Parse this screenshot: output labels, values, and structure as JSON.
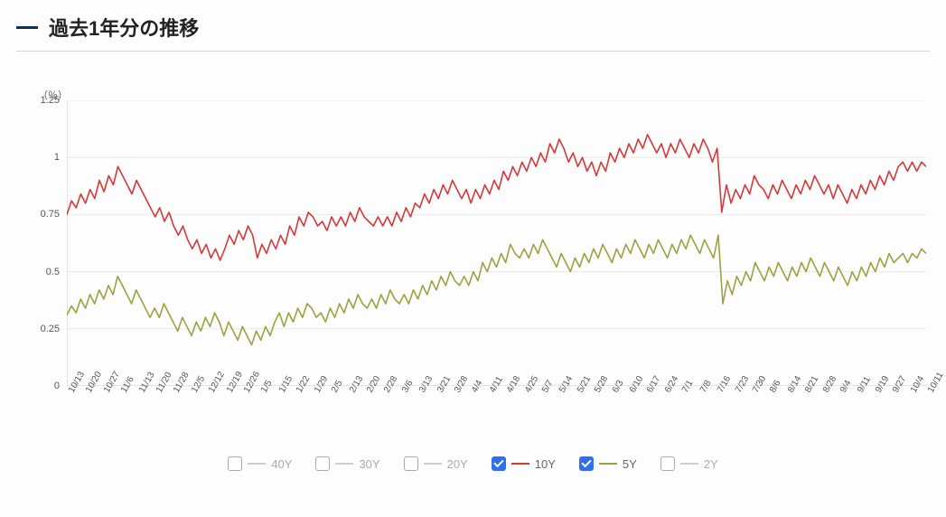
{
  "title": "過去1年分の推移",
  "chart": {
    "type": "line",
    "y_unit": "（％）",
    "ylim": [
      0,
      1.25
    ],
    "ytick_step": 0.25,
    "ytick_labels": [
      "0",
      "0.25",
      "0.5",
      "0.75",
      "1",
      "1.25"
    ],
    "background_color": "#fdfdfd",
    "grid_color": "#e8e8e8",
    "axis_color": "#cccccc",
    "text_color": "#555555",
    "xtick_rotation": -60,
    "label_fontsize": 11,
    "x_labels": [
      "10/13",
      "10/20",
      "10/27",
      "11/6",
      "11/13",
      "11/20",
      "11/28",
      "12/5",
      "12/12",
      "12/19",
      "12/26",
      "1/5",
      "1/15",
      "1/22",
      "1/29",
      "2/5",
      "2/13",
      "2/20",
      "2/28",
      "3/6",
      "3/13",
      "3/21",
      "3/28",
      "4/4",
      "4/11",
      "4/18",
      "4/25",
      "5/7",
      "5/14",
      "5/21",
      "5/28",
      "6/3",
      "6/10",
      "6/17",
      "6/24",
      "7/1",
      "7/8",
      "7/16",
      "7/23",
      "7/30",
      "8/6",
      "8/14",
      "8/21",
      "8/28",
      "9/4",
      "9/11",
      "9/19",
      "9/27",
      "10/4",
      "10/11"
    ],
    "series": {
      "s40Y": {
        "label": "40Y",
        "color": "#cccccc",
        "visible": false,
        "line_width": 1.5,
        "values": []
      },
      "s30Y": {
        "label": "30Y",
        "color": "#cccccc",
        "visible": false,
        "line_width": 1.5,
        "values": []
      },
      "s20Y": {
        "label": "20Y",
        "color": "#cccccc",
        "visible": false,
        "line_width": 1.5,
        "values": []
      },
      "s10Y": {
        "label": "10Y",
        "color": "#d73838",
        "visible": true,
        "line_width": 1.6,
        "values": [
          0.75,
          0.81,
          0.78,
          0.84,
          0.8,
          0.86,
          0.82,
          0.9,
          0.85,
          0.92,
          0.88,
          0.96,
          0.92,
          0.88,
          0.84,
          0.9,
          0.86,
          0.82,
          0.78,
          0.74,
          0.78,
          0.72,
          0.76,
          0.7,
          0.66,
          0.7,
          0.64,
          0.6,
          0.64,
          0.58,
          0.62,
          0.56,
          0.6,
          0.55,
          0.6,
          0.66,
          0.62,
          0.68,
          0.64,
          0.7,
          0.66,
          0.56,
          0.62,
          0.58,
          0.64,
          0.6,
          0.66,
          0.62,
          0.7,
          0.66,
          0.74,
          0.7,
          0.76,
          0.74,
          0.7,
          0.72,
          0.68,
          0.74,
          0.7,
          0.74,
          0.7,
          0.76,
          0.72,
          0.78,
          0.74,
          0.72,
          0.7,
          0.74,
          0.7,
          0.74,
          0.7,
          0.76,
          0.72,
          0.78,
          0.74,
          0.8,
          0.78,
          0.84,
          0.8,
          0.86,
          0.82,
          0.88,
          0.84,
          0.9,
          0.86,
          0.82,
          0.86,
          0.8,
          0.86,
          0.82,
          0.88,
          0.84,
          0.9,
          0.86,
          0.94,
          0.9,
          0.96,
          0.92,
          0.98,
          0.94,
          1.0,
          0.96,
          1.02,
          0.98,
          1.06,
          1.02,
          1.08,
          1.04,
          0.98,
          1.02,
          0.96,
          1.0,
          0.94,
          0.98,
          0.92,
          0.98,
          0.94,
          1.02,
          0.98,
          1.04,
          1.0,
          1.06,
          1.02,
          1.08,
          1.04,
          1.1,
          1.06,
          1.02,
          1.06,
          1.0,
          1.06,
          1.02,
          1.08,
          1.04,
          1.0,
          1.06,
          1.02,
          1.08,
          1.04,
          0.98,
          1.04,
          0.76,
          0.88,
          0.8,
          0.86,
          0.82,
          0.88,
          0.84,
          0.92,
          0.88,
          0.86,
          0.82,
          0.88,
          0.84,
          0.9,
          0.86,
          0.82,
          0.88,
          0.84,
          0.9,
          0.86,
          0.92,
          0.88,
          0.84,
          0.88,
          0.82,
          0.88,
          0.84,
          0.8,
          0.86,
          0.82,
          0.88,
          0.84,
          0.9,
          0.86,
          0.92,
          0.88,
          0.94,
          0.9,
          0.96,
          0.98,
          0.94,
          0.98,
          0.94,
          0.98,
          0.96
        ]
      },
      "s5Y": {
        "label": "5Y",
        "color": "#9aa33f",
        "visible": true,
        "line_width": 1.6,
        "values": [
          0.31,
          0.35,
          0.32,
          0.38,
          0.34,
          0.4,
          0.36,
          0.42,
          0.38,
          0.44,
          0.4,
          0.48,
          0.44,
          0.4,
          0.36,
          0.42,
          0.38,
          0.34,
          0.3,
          0.34,
          0.3,
          0.36,
          0.32,
          0.28,
          0.24,
          0.3,
          0.26,
          0.22,
          0.28,
          0.24,
          0.3,
          0.26,
          0.32,
          0.28,
          0.22,
          0.28,
          0.24,
          0.2,
          0.26,
          0.22,
          0.18,
          0.24,
          0.2,
          0.26,
          0.22,
          0.28,
          0.32,
          0.26,
          0.32,
          0.28,
          0.34,
          0.3,
          0.36,
          0.34,
          0.3,
          0.32,
          0.28,
          0.34,
          0.3,
          0.36,
          0.32,
          0.38,
          0.34,
          0.4,
          0.36,
          0.34,
          0.38,
          0.34,
          0.4,
          0.36,
          0.42,
          0.38,
          0.36,
          0.4,
          0.36,
          0.42,
          0.38,
          0.44,
          0.4,
          0.46,
          0.42,
          0.48,
          0.44,
          0.5,
          0.46,
          0.44,
          0.48,
          0.44,
          0.5,
          0.46,
          0.54,
          0.5,
          0.56,
          0.52,
          0.58,
          0.54,
          0.62,
          0.58,
          0.56,
          0.6,
          0.56,
          0.62,
          0.58,
          0.64,
          0.6,
          0.56,
          0.52,
          0.58,
          0.54,
          0.5,
          0.56,
          0.52,
          0.58,
          0.54,
          0.6,
          0.56,
          0.62,
          0.58,
          0.54,
          0.6,
          0.56,
          0.62,
          0.58,
          0.64,
          0.6,
          0.56,
          0.62,
          0.58,
          0.64,
          0.6,
          0.56,
          0.62,
          0.58,
          0.64,
          0.6,
          0.66,
          0.62,
          0.58,
          0.64,
          0.6,
          0.56,
          0.66,
          0.36,
          0.46,
          0.4,
          0.48,
          0.44,
          0.5,
          0.46,
          0.54,
          0.5,
          0.46,
          0.52,
          0.48,
          0.54,
          0.5,
          0.46,
          0.52,
          0.48,
          0.54,
          0.5,
          0.56,
          0.52,
          0.48,
          0.54,
          0.5,
          0.46,
          0.52,
          0.48,
          0.44,
          0.5,
          0.46,
          0.52,
          0.48,
          0.54,
          0.5,
          0.56,
          0.52,
          0.58,
          0.54,
          0.56,
          0.58,
          0.54,
          0.58,
          0.56,
          0.6,
          0.58
        ]
      },
      "s2Y": {
        "label": "2Y",
        "color": "#cccccc",
        "visible": false,
        "line_width": 1.5,
        "values": []
      }
    }
  },
  "legend": {
    "checked_bg": "#2f6fed",
    "unchecked_border": "#aaaaaa",
    "items": [
      {
        "key": "s40Y",
        "label": "40Y"
      },
      {
        "key": "s30Y",
        "label": "30Y"
      },
      {
        "key": "s20Y",
        "label": "20Y"
      },
      {
        "key": "s10Y",
        "label": "10Y"
      },
      {
        "key": "s5Y",
        "label": "5Y"
      },
      {
        "key": "s2Y",
        "label": "2Y"
      }
    ]
  }
}
